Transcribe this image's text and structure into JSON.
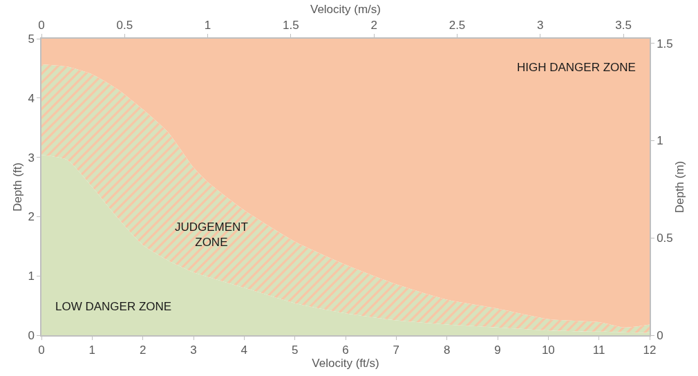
{
  "chart_data": {
    "type": "area",
    "xlabel": "Velocity (ft/s)",
    "ylabel": "Depth (ft)",
    "x2label": "Velocity (m/s)",
    "y2label": "Depth (m)",
    "x": [
      0,
      0.5,
      1,
      1.5,
      2,
      2.5,
      3,
      3.3,
      4,
      5,
      6,
      7,
      8,
      9,
      10,
      11,
      11.5,
      12
    ],
    "series": [
      {
        "name": "LOW DANGER ZONE",
        "color": "#d7e3bd",
        "values": [
          3.04,
          2.96,
          2.5,
          1.98,
          1.52,
          1.26,
          1.06,
          0.98,
          0.8,
          0.54,
          0.37,
          0.25,
          0.18,
          0.13,
          0.08,
          0.06,
          0.05,
          0.04
        ]
      },
      {
        "name": "JUDGEMENT ZONE",
        "color": "#d7e3bd",
        "values": [
          4.57,
          4.53,
          4.4,
          4.15,
          3.81,
          3.42,
          2.83,
          2.57,
          2.11,
          1.58,
          1.19,
          0.86,
          0.6,
          0.45,
          0.27,
          0.22,
          0.13,
          0.18
        ]
      },
      {
        "name": "HIGH DANGER ZONE",
        "color": "#f9c5a5",
        "values": [
          5,
          5,
          5,
          5,
          5,
          5,
          5,
          5,
          5,
          5,
          5,
          5,
          5,
          5,
          5,
          5,
          5,
          5
        ]
      }
    ],
    "xlim": [
      0,
      12
    ],
    "xticks": [
      0,
      1,
      2,
      3,
      4,
      5,
      6,
      7,
      8,
      9,
      10,
      11,
      12
    ],
    "ylim": [
      0,
      5
    ],
    "yticks": [
      0,
      1,
      2,
      3,
      4,
      5
    ],
    "x2lim": [
      0,
      3.6576
    ],
    "x2ticks": [
      0,
      0.5,
      1,
      1.5,
      2,
      2.5,
      3,
      3.5
    ],
    "y2lim": [
      0,
      1.524
    ],
    "y2ticks": [
      0,
      0.5,
      1,
      1.5
    ],
    "legend": false
  }
}
